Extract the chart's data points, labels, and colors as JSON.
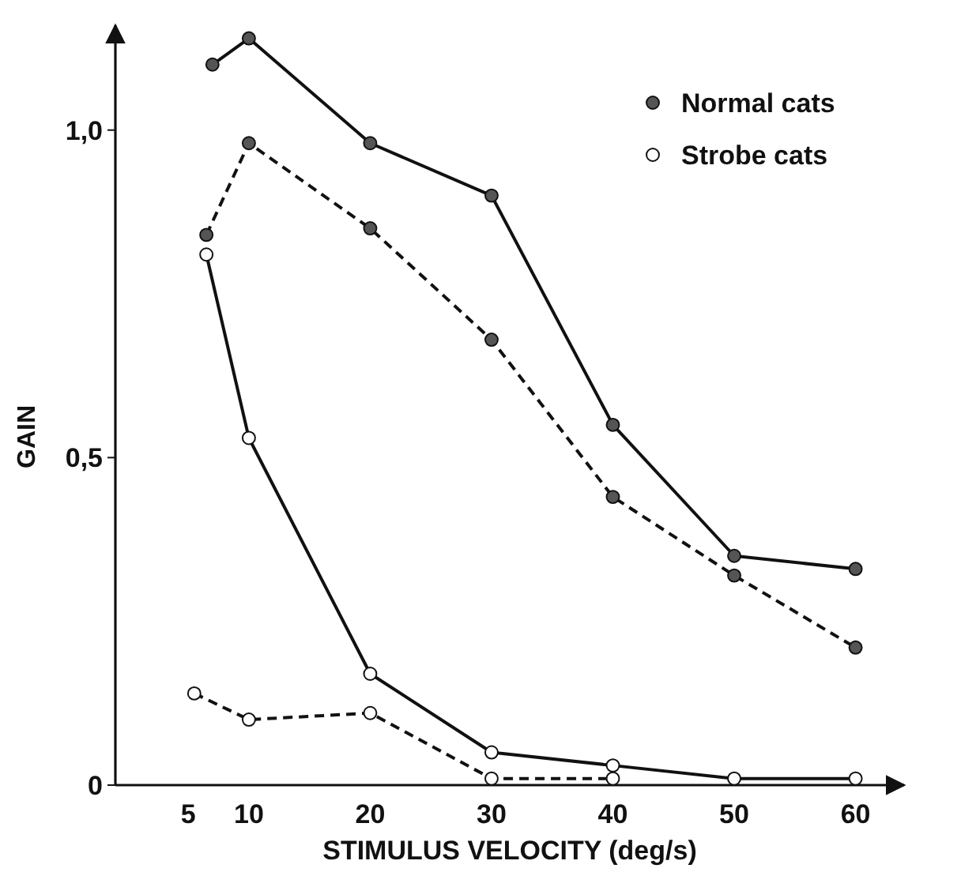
{
  "chart_data": {
    "type": "line",
    "xlabel": "STIMULUS VELOCITY (deg/s)",
    "ylabel": "GAIN",
    "xlim": [
      -1,
      64
    ],
    "ylim": [
      0,
      1.16
    ],
    "xticks": [
      5,
      10,
      20,
      30,
      40,
      50,
      60
    ],
    "yticks": [
      {
        "value": 0,
        "label": "0"
      },
      {
        "value": 0.5,
        "label": "0,5"
      },
      {
        "value": 1,
        "label": "1,0"
      }
    ],
    "marker": "circle",
    "legend": "top right",
    "grid": false,
    "series": [
      {
        "name": "Normal cats",
        "color": "#555555",
        "line_style": "solid",
        "x": [
          7,
          10,
          20,
          30,
          40,
          50,
          60
        ],
        "values": [
          1.1,
          1.14,
          0.98,
          0.9,
          0.55,
          0.35,
          0.33
        ]
      },
      {
        "color": "#555555",
        "line_style": "dashed",
        "x": [
          6.5,
          10,
          20,
          30,
          40,
          50,
          60
        ],
        "values": [
          0.84,
          0.98,
          0.85,
          0.68,
          0.44,
          0.32,
          0.21
        ]
      },
      {
        "name": "Strobe cats",
        "color": "#ffffff",
        "line_style": "solid",
        "x": [
          6.5,
          10,
          20,
          30,
          40,
          50,
          60
        ],
        "values": [
          0.81,
          0.53,
          0.17,
          0.05,
          0.03,
          0.01,
          0.01
        ]
      },
      {
        "color": "#ffffff",
        "line_style": "dashed",
        "x": [
          5.5,
          10,
          20,
          30,
          40
        ],
        "values": [
          0.14,
          0.1,
          0.11,
          0.01,
          0.01
        ]
      }
    ]
  }
}
